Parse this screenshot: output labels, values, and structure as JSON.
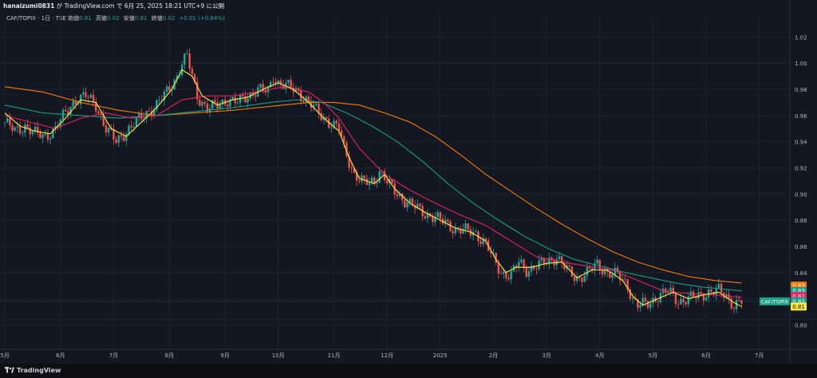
{
  "header": {
    "user": "hanaizumi0831",
    "text": " が TradingView.com で 6月 25, 2025 18:21 UTC+9 に公開"
  },
  "legend": {
    "symbol": "CAF/TOPIX · 1日 · TSE",
    "open_label": "始値",
    "open": "0.81",
    "high_label": "高値",
    "high": "0.82",
    "low_label": "安値",
    "low": "0.81",
    "close_label": "終値",
    "close": "0.82",
    "change": "+0.01 (+0.84%)"
  },
  "brand": {
    "name": "TradingView"
  },
  "colors": {
    "bg": "#131722",
    "grid": "#1e222d",
    "axis_text": "#b2b5be",
    "up": "#26a69a",
    "down": "#ef5350",
    "ma_fast": "#ffeb3b",
    "ma_mid": "#e91e63",
    "ma_slow": "#16a085",
    "ma_long": "#f57c00"
  },
  "price_labels": [
    {
      "value": 0.83,
      "text": "0.83",
      "color": "#f57c00"
    },
    {
      "value": 0.826,
      "text": "0.83",
      "color": "#16a085"
    },
    {
      "value": 0.822,
      "text": "0.82",
      "color": "#e91e63"
    },
    {
      "value": 0.818,
      "text": "0.82",
      "color": "#16a085",
      "symbol": "CAF/TOPIX"
    },
    {
      "value": 0.814,
      "text": "0.81",
      "color": "#ffeb3b"
    }
  ],
  "chart_data": {
    "type": "candlestick",
    "ylim": [
      0.785,
      1.03
    ],
    "y_ticks": [
      0.8,
      0.82,
      0.84,
      0.86,
      0.88,
      0.9,
      0.92,
      0.94,
      0.96,
      0.98,
      1.0,
      1.02
    ],
    "y_tick_labels": [
      "0.80",
      "",
      "0.84",
      "0.86",
      "0.88",
      "0.90",
      "0.92",
      "0.94",
      "0.96",
      "0.98",
      "1.00",
      "1.02"
    ],
    "x_labels": [
      "5月",
      "6月",
      "7月",
      "8月",
      "9月",
      "10月",
      "11月",
      "12月",
      "2025",
      "2月",
      "3月",
      "4月",
      "5月",
      "6月",
      "7月"
    ],
    "x_label_index": [
      0,
      22,
      43,
      65,
      87,
      108,
      130,
      151,
      172,
      193,
      214,
      235,
      256,
      277,
      298
    ],
    "total_bars": 300,
    "last_bar": 291,
    "close_path": [
      [
        0,
        0.955
      ],
      [
        4,
        0.948
      ],
      [
        8,
        0.952
      ],
      [
        12,
        0.946
      ],
      [
        16,
        0.944
      ],
      [
        20,
        0.95
      ],
      [
        24,
        0.962
      ],
      [
        28,
        0.972
      ],
      [
        32,
        0.975
      ],
      [
        36,
        0.968
      ],
      [
        40,
        0.95
      ],
      [
        44,
        0.94
      ],
      [
        48,
        0.948
      ],
      [
        52,
        0.955
      ],
      [
        56,
        0.962
      ],
      [
        60,
        0.968
      ],
      [
        64,
        0.978
      ],
      [
        68,
        0.99
      ],
      [
        70,
        1.0
      ],
      [
        72,
        1.005
      ],
      [
        74,
        0.99
      ],
      [
        76,
        0.975
      ],
      [
        80,
        0.965
      ],
      [
        84,
        0.968
      ],
      [
        88,
        0.972
      ],
      [
        92,
        0.97
      ],
      [
        96,
        0.975
      ],
      [
        100,
        0.98
      ],
      [
        104,
        0.978
      ],
      [
        106,
        0.99
      ],
      [
        108,
        0.985
      ],
      [
        112,
        0.982
      ],
      [
        116,
        0.978
      ],
      [
        120,
        0.97
      ],
      [
        124,
        0.962
      ],
      [
        128,
        0.955
      ],
      [
        132,
        0.95
      ],
      [
        134,
        0.935
      ],
      [
        136,
        0.925
      ],
      [
        138,
        0.915
      ],
      [
        142,
        0.908
      ],
      [
        146,
        0.91
      ],
      [
        148,
        0.918
      ],
      [
        150,
        0.912
      ],
      [
        154,
        0.902
      ],
      [
        158,
        0.895
      ],
      [
        162,
        0.89
      ],
      [
        166,
        0.885
      ],
      [
        170,
        0.882
      ],
      [
        174,
        0.878
      ],
      [
        178,
        0.873
      ],
      [
        182,
        0.872
      ],
      [
        186,
        0.87
      ],
      [
        190,
        0.862
      ],
      [
        193,
        0.85
      ],
      [
        196,
        0.84
      ],
      [
        200,
        0.838
      ],
      [
        203,
        0.848
      ],
      [
        206,
        0.842
      ],
      [
        210,
        0.845
      ],
      [
        214,
        0.848
      ],
      [
        218,
        0.852
      ],
      [
        222,
        0.842
      ],
      [
        226,
        0.835
      ],
      [
        230,
        0.84
      ],
      [
        234,
        0.846
      ],
      [
        238,
        0.84
      ],
      [
        242,
        0.838
      ],
      [
        246,
        0.83
      ],
      [
        248,
        0.82
      ],
      [
        250,
        0.815
      ],
      [
        254,
        0.816
      ],
      [
        258,
        0.822
      ],
      [
        262,
        0.826
      ],
      [
        266,
        0.818
      ],
      [
        270,
        0.82
      ],
      [
        274,
        0.822
      ],
      [
        278,
        0.825
      ],
      [
        282,
        0.826
      ],
      [
        285,
        0.822
      ],
      [
        288,
        0.815
      ],
      [
        291,
        0.818
      ]
    ],
    "ma_fast_path": [
      [
        0,
        0.962
      ],
      [
        6,
        0.952
      ],
      [
        12,
        0.948
      ],
      [
        18,
        0.946
      ],
      [
        24,
        0.958
      ],
      [
        30,
        0.972
      ],
      [
        36,
        0.97
      ],
      [
        42,
        0.95
      ],
      [
        48,
        0.944
      ],
      [
        54,
        0.955
      ],
      [
        60,
        0.966
      ],
      [
        66,
        0.98
      ],
      [
        70,
        0.995
      ],
      [
        74,
        0.99
      ],
      [
        78,
        0.975
      ],
      [
        84,
        0.968
      ],
      [
        90,
        0.972
      ],
      [
        96,
        0.974
      ],
      [
        102,
        0.98
      ],
      [
        108,
        0.985
      ],
      [
        114,
        0.98
      ],
      [
        120,
        0.97
      ],
      [
        126,
        0.958
      ],
      [
        132,
        0.948
      ],
      [
        136,
        0.928
      ],
      [
        140,
        0.912
      ],
      [
        146,
        0.908
      ],
      [
        150,
        0.915
      ],
      [
        154,
        0.904
      ],
      [
        160,
        0.893
      ],
      [
        166,
        0.886
      ],
      [
        172,
        0.88
      ],
      [
        178,
        0.874
      ],
      [
        184,
        0.871
      ],
      [
        190,
        0.864
      ],
      [
        194,
        0.85
      ],
      [
        198,
        0.84
      ],
      [
        202,
        0.844
      ],
      [
        208,
        0.844
      ],
      [
        214,
        0.847
      ],
      [
        220,
        0.848
      ],
      [
        226,
        0.836
      ],
      [
        232,
        0.842
      ],
      [
        238,
        0.842
      ],
      [
        244,
        0.834
      ],
      [
        248,
        0.822
      ],
      [
        252,
        0.815
      ],
      [
        258,
        0.82
      ],
      [
        264,
        0.825
      ],
      [
        270,
        0.82
      ],
      [
        276,
        0.823
      ],
      [
        282,
        0.825
      ],
      [
        288,
        0.817
      ],
      [
        291,
        0.814
      ]
    ],
    "ma_mid_path": [
      [
        0,
        0.96
      ],
      [
        10,
        0.955
      ],
      [
        20,
        0.95
      ],
      [
        30,
        0.958
      ],
      [
        40,
        0.962
      ],
      [
        50,
        0.958
      ],
      [
        60,
        0.96
      ],
      [
        70,
        0.972
      ],
      [
        80,
        0.975
      ],
      [
        90,
        0.975
      ],
      [
        100,
        0.978
      ],
      [
        110,
        0.982
      ],
      [
        120,
        0.978
      ],
      [
        126,
        0.97
      ],
      [
        132,
        0.958
      ],
      [
        140,
        0.935
      ],
      [
        150,
        0.915
      ],
      [
        160,
        0.903
      ],
      [
        170,
        0.893
      ],
      [
        180,
        0.884
      ],
      [
        190,
        0.876
      ],
      [
        200,
        0.864
      ],
      [
        210,
        0.852
      ],
      [
        220,
        0.848
      ],
      [
        230,
        0.845
      ],
      [
        240,
        0.842
      ],
      [
        250,
        0.834
      ],
      [
        260,
        0.826
      ],
      [
        270,
        0.824
      ],
      [
        280,
        0.823
      ],
      [
        291,
        0.821
      ]
    ],
    "ma_slow_path": [
      [
        0,
        0.968
      ],
      [
        15,
        0.962
      ],
      [
        30,
        0.96
      ],
      [
        45,
        0.958
      ],
      [
        60,
        0.96
      ],
      [
        75,
        0.963
      ],
      [
        90,
        0.966
      ],
      [
        105,
        0.97
      ],
      [
        115,
        0.972
      ],
      [
        125,
        0.97
      ],
      [
        135,
        0.962
      ],
      [
        145,
        0.952
      ],
      [
        155,
        0.94
      ],
      [
        165,
        0.925
      ],
      [
        175,
        0.908
      ],
      [
        185,
        0.893
      ],
      [
        195,
        0.88
      ],
      [
        205,
        0.868
      ],
      [
        215,
        0.858
      ],
      [
        225,
        0.85
      ],
      [
        235,
        0.845
      ],
      [
        245,
        0.84
      ],
      [
        255,
        0.836
      ],
      [
        265,
        0.832
      ],
      [
        275,
        0.829
      ],
      [
        291,
        0.826
      ]
    ],
    "ma_long_path": [
      [
        0,
        0.982
      ],
      [
        15,
        0.978
      ],
      [
        30,
        0.97
      ],
      [
        45,
        0.964
      ],
      [
        60,
        0.96
      ],
      [
        75,
        0.962
      ],
      [
        90,
        0.964
      ],
      [
        105,
        0.967
      ],
      [
        120,
        0.97
      ],
      [
        130,
        0.97
      ],
      [
        140,
        0.968
      ],
      [
        150,
        0.962
      ],
      [
        160,
        0.955
      ],
      [
        170,
        0.944
      ],
      [
        180,
        0.93
      ],
      [
        190,
        0.915
      ],
      [
        200,
        0.902
      ],
      [
        210,
        0.889
      ],
      [
        220,
        0.877
      ],
      [
        230,
        0.866
      ],
      [
        240,
        0.856
      ],
      [
        250,
        0.848
      ],
      [
        260,
        0.842
      ],
      [
        270,
        0.837
      ],
      [
        280,
        0.834
      ],
      [
        291,
        0.832
      ]
    ]
  }
}
